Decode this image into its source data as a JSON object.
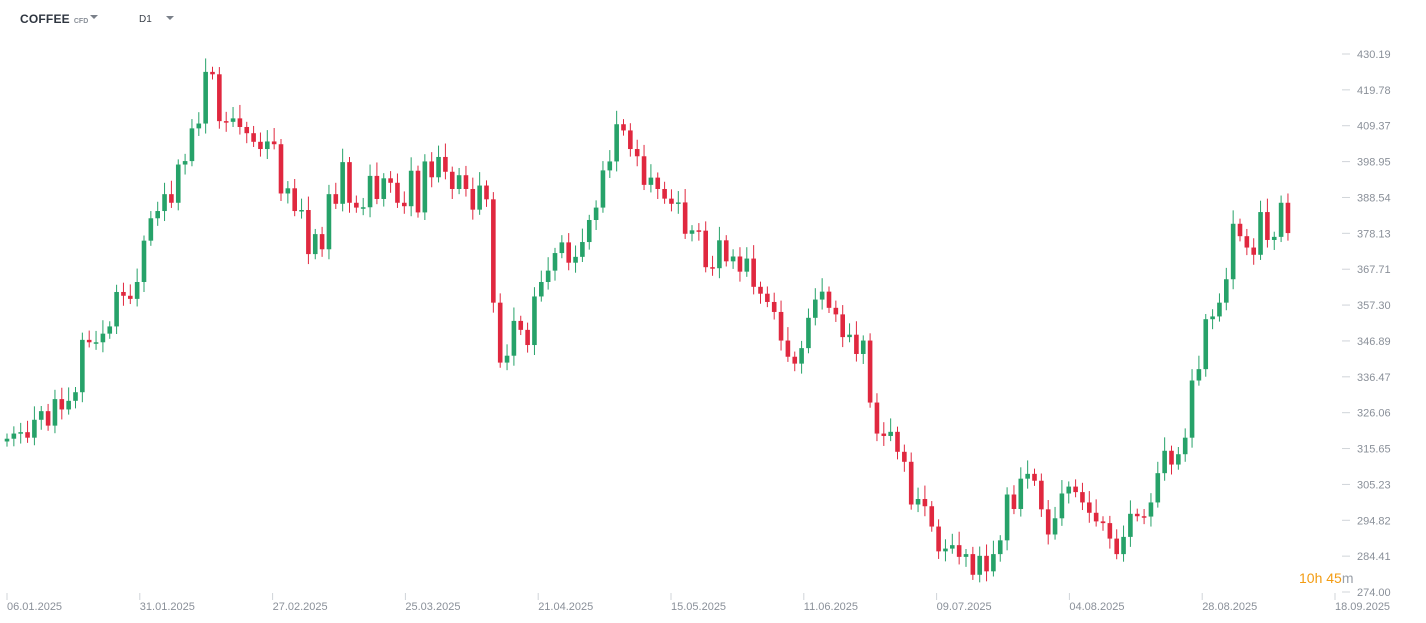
{
  "header": {
    "symbol": "COFFEE",
    "symbol_type": "CFD",
    "timeframe": "D1"
  },
  "countdown": {
    "hours": "10",
    "hours_unit": "h",
    "minutes": "45",
    "minutes_unit": "m"
  },
  "colors": {
    "up": "#26a269",
    "down": "#e0283f",
    "axis_text": "#8a9099",
    "tick": "#d0d4d9",
    "countdown": "#f39c12"
  },
  "chart_data": {
    "type": "candlestick",
    "y_ticks": [
      274.0,
      284.41,
      294.82,
      305.23,
      315.65,
      326.06,
      336.47,
      346.89,
      357.3,
      367.71,
      378.13,
      388.54,
      398.95,
      409.37,
      419.78,
      430.19
    ],
    "x_labels": [
      "06.01.2025",
      "31.01.2025",
      "27.02.2025",
      "25.03.2025",
      "21.04.2025",
      "15.05.2025",
      "11.06.2025",
      "09.07.2025",
      "04.08.2025",
      "28.08.2025",
      "18.09.2025"
    ],
    "ylim": [
      274.0,
      430.19
    ],
    "close": [
      318.5,
      320.0,
      320.4,
      318.8,
      324.0,
      326.5,
      322.3,
      330.0,
      327.0,
      329.5,
      332.0,
      347.2,
      346.5,
      346.5,
      349.0,
      351.1,
      361.1,
      360.0,
      359.1,
      364.0,
      376.0,
      382.5,
      384.6,
      389.5,
      387.0,
      398.1,
      399.1,
      408.6,
      410.0,
      425.0,
      424.3,
      410.7,
      410.5,
      411.5,
      409.0,
      407.2,
      404.7,
      402.6,
      404.8,
      404.0,
      389.7,
      391.2,
      384.6,
      384.9,
      372.1,
      377.9,
      373.5,
      389.5,
      386.7,
      398.8,
      387.0,
      385.6,
      385.7,
      394.8,
      388.1,
      394.1,
      392.8,
      387.0,
      386.0,
      396.3,
      384.2,
      399.0,
      394.4,
      400.3,
      396.0,
      391.0,
      395.0,
      391.0,
      385.0,
      392.0,
      388.0,
      358.0,
      340.6,
      342.6,
      352.7,
      350.1,
      345.7,
      359.8,
      364.0,
      367.3,
      372.4,
      375.5,
      369.6,
      371.3,
      375.6,
      382.0,
      385.6,
      396.4,
      399.0,
      409.8,
      408.0,
      402.6,
      400.5,
      392.2,
      394.3,
      391.0,
      388.2,
      386.7,
      387.1,
      378.0,
      379.0,
      378.9,
      368.3,
      368.0,
      376.1,
      370.0,
      371.4,
      367.0,
      370.8,
      362.6,
      360.6,
      358.2,
      355.3,
      347.0,
      342.3,
      340.3,
      344.8,
      353.6,
      358.9,
      361.2,
      356.5,
      354.6,
      348.0,
      348.7,
      343.1,
      347.0,
      329.0,
      320.0,
      319.3,
      320.5,
      314.7,
      311.8,
      299.4,
      301.0,
      298.9,
      293.0,
      285.8,
      286.6,
      287.6,
      284.2,
      285.0,
      279.0,
      284.5,
      280.0,
      285.0,
      289.0,
      302.3,
      298.1,
      306.9,
      308.3,
      306.3,
      298.0,
      290.7,
      295.4,
      302.6,
      304.6,
      303.0,
      300.0,
      297.0,
      294.5,
      294.0,
      289.5,
      285.0,
      290.0,
      296.7,
      296.0,
      295.9,
      300.0,
      308.5,
      315.0,
      311.0,
      314.0,
      318.8,
      335.4,
      338.7,
      353.2,
      354.0,
      358.0,
      364.8,
      380.9,
      377.3,
      374.0,
      371.9,
      384.3,
      376.2,
      377.1,
      387.0,
      378.2
    ]
  }
}
